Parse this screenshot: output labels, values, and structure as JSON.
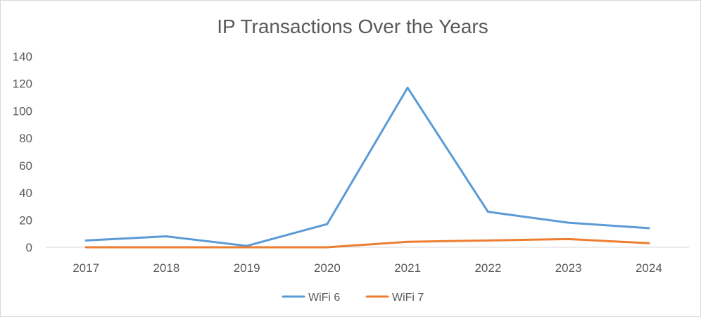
{
  "chart_data": {
    "type": "line",
    "title": "IP Transactions Over the Years",
    "xlabel": "",
    "ylabel": "",
    "categories": [
      "2017",
      "2018",
      "2019",
      "2020",
      "2021",
      "2022",
      "2023",
      "2024"
    ],
    "ylim": [
      0,
      140
    ],
    "yticks": [
      0,
      20,
      40,
      60,
      80,
      100,
      120,
      140
    ],
    "grid": false,
    "legend_position": "bottom",
    "series": [
      {
        "name": "WiFi 6",
        "color": "#5b9bd5",
        "values": [
          5,
          8,
          1,
          17,
          117,
          26,
          18,
          14
        ]
      },
      {
        "name": "WiFi 7",
        "color": "#ed7d31",
        "values": [
          0,
          0,
          0,
          0,
          4,
          5,
          6,
          3
        ]
      }
    ]
  }
}
